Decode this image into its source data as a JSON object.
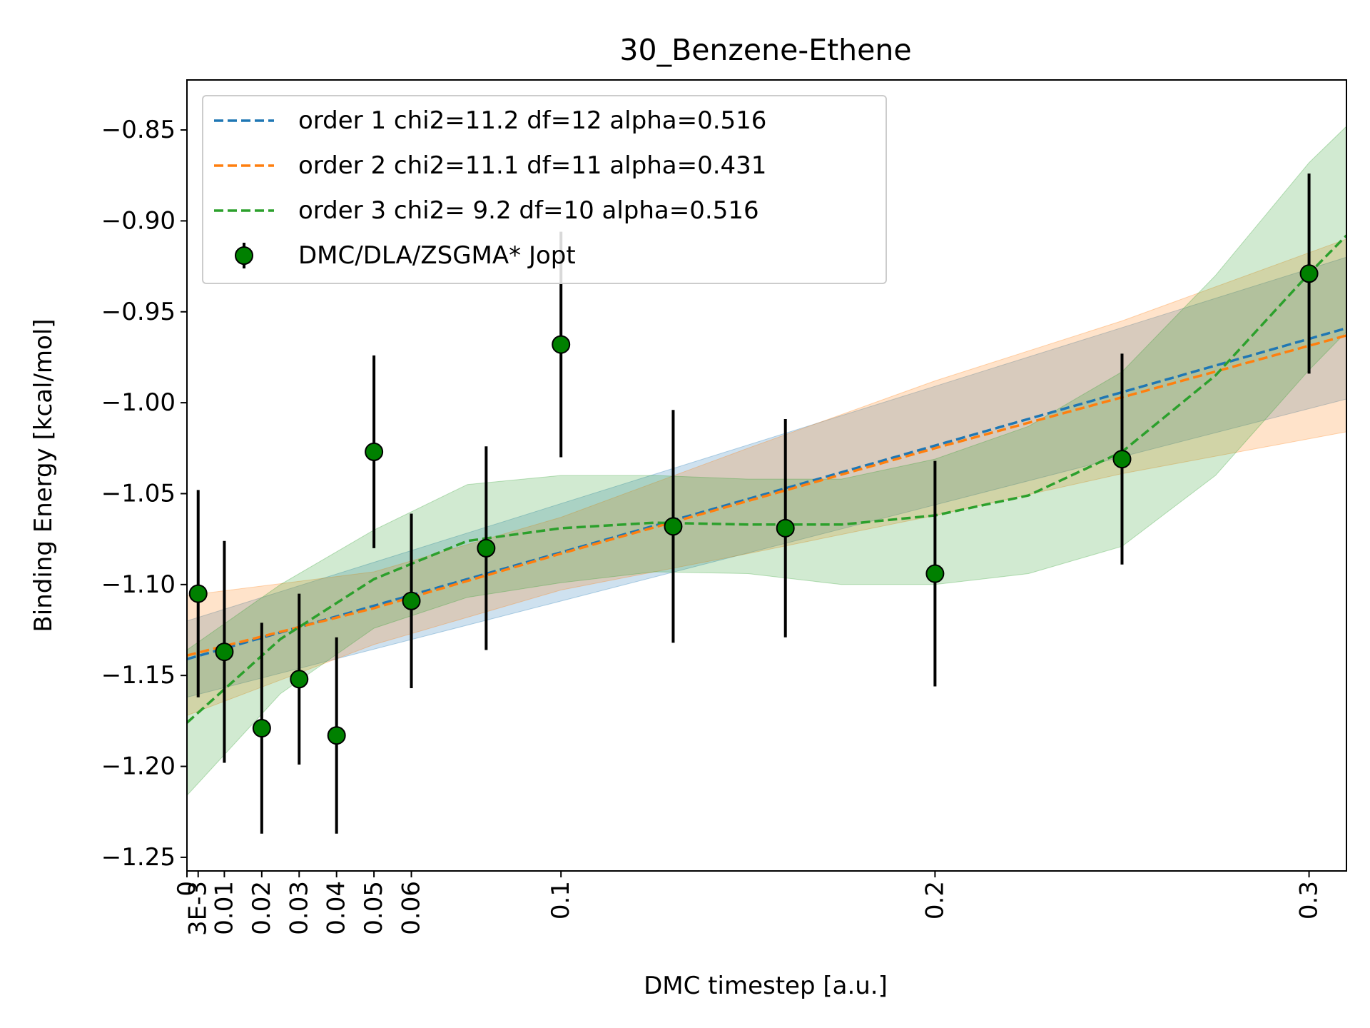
{
  "chart_data": {
    "type": "scatter",
    "title": "30_Benzene-Ethene",
    "xlabel": "DMC timestep [a.u.]",
    "ylabel": "Binding Energy [kcal/mol]",
    "xlim": [
      0,
      0.31
    ],
    "ylim": [
      -1.2575,
      -0.8225
    ],
    "x_ticks": [
      0,
      0.003,
      0.01,
      0.02,
      0.03,
      0.04,
      0.05,
      0.06,
      0.1,
      0.2,
      0.3
    ],
    "x_tick_labels": [
      "0",
      "3E-3",
      "0.01",
      "0.02",
      "0.03",
      "0.04",
      "0.05",
      "0.06",
      "0.1",
      "0.2",
      "0.3"
    ],
    "y_ticks": [
      -1.25,
      -1.2,
      -1.15,
      -1.1,
      -1.05,
      -1.0,
      -0.95,
      -0.9,
      -0.85
    ],
    "y_tick_labels": [
      "−1.25",
      "−1.20",
      "−1.15",
      "−1.10",
      "−1.05",
      "−1.00",
      "−0.95",
      "−0.90",
      "−0.85"
    ],
    "grid": false,
    "legend_position": "top-left",
    "points": {
      "name": "DMC/DLA/ZSGMA* Jopt",
      "color": "#008000",
      "x": [
        0.003,
        0.01,
        0.02,
        0.03,
        0.04,
        0.05,
        0.06,
        0.08,
        0.1,
        0.13,
        0.16,
        0.2,
        0.25,
        0.3
      ],
      "y": [
        -1.105,
        -1.137,
        -1.179,
        -1.152,
        -1.183,
        -1.027,
        -1.109,
        -1.08,
        -0.968,
        -1.068,
        -1.069,
        -1.094,
        -1.031,
        -0.929
      ],
      "yerr": [
        0.057,
        0.061,
        0.058,
        0.047,
        0.054,
        0.053,
        0.048,
        0.056,
        0.062,
        0.064,
        0.06,
        0.062,
        0.058,
        0.055
      ]
    },
    "fits": [
      {
        "name": "order 1 chi2=11.2 df=12 alpha=0.516",
        "color": "#1f77b4",
        "x": [
          0,
          0.31
        ],
        "y": [
          -1.141,
          -0.959
        ],
        "band_x": [
          0,
          0.31
        ],
        "band_lower": [
          -1.162,
          -0.998
        ],
        "band_upper": [
          -1.12,
          -0.92
        ]
      },
      {
        "name": "order 2 chi2=11.1 df=11 alpha=0.431",
        "color": "#ff7f0e",
        "x": [
          0,
          0.05,
          0.1,
          0.15,
          0.2,
          0.25,
          0.31
        ],
        "y": [
          -1.139,
          -1.113,
          -1.083,
          -1.054,
          -1.025,
          -0.997,
          -0.963
        ],
        "band_x": [
          0,
          0.05,
          0.1,
          0.15,
          0.2,
          0.25,
          0.31
        ],
        "band_lower": [
          -1.172,
          -1.133,
          -1.103,
          -1.083,
          -1.062,
          -1.039,
          -1.016
        ],
        "band_upper": [
          -1.106,
          -1.093,
          -1.063,
          -1.025,
          -0.988,
          -0.955,
          -0.91
        ]
      },
      {
        "name": "order 3 chi2= 9.2 df=10 alpha=0.516",
        "color": "#2ca02c",
        "x": [
          0,
          0.025,
          0.05,
          0.075,
          0.1,
          0.125,
          0.15,
          0.175,
          0.2,
          0.225,
          0.25,
          0.275,
          0.3,
          0.31
        ],
        "y": [
          -1.176,
          -1.13,
          -1.097,
          -1.076,
          -1.069,
          -1.066,
          -1.067,
          -1.067,
          -1.062,
          -1.051,
          -1.027,
          -0.985,
          -0.929,
          -0.908
        ],
        "band_x": [
          0,
          0.025,
          0.05,
          0.075,
          0.1,
          0.125,
          0.15,
          0.175,
          0.2,
          0.225,
          0.25,
          0.275,
          0.3,
          0.31
        ],
        "band_lower": [
          -1.216,
          -1.16,
          -1.124,
          -1.107,
          -1.099,
          -1.093,
          -1.094,
          -1.1,
          -1.1,
          -1.094,
          -1.079,
          -1.04,
          -0.982,
          -0.961
        ],
        "band_upper": [
          -1.136,
          -1.1,
          -1.07,
          -1.045,
          -1.04,
          -1.04,
          -1.042,
          -1.042,
          -1.031,
          -1.013,
          -0.983,
          -0.93,
          -0.868,
          -0.848
        ]
      }
    ]
  }
}
